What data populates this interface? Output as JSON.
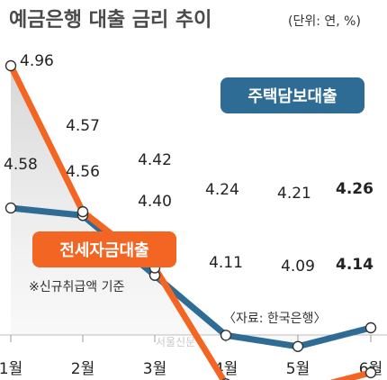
{
  "header": {
    "title": "예금은행 대출 금리 추이",
    "unit": "(단위: 연, %)"
  },
  "note": "※신규취급액 기준",
  "source": "〈자료: 한국은행〉",
  "watermark": "서울신문",
  "chart_data": {
    "type": "line",
    "categories": [
      "1월",
      "2월",
      "3월",
      "4월",
      "5월",
      "6월"
    ],
    "ylim": [
      4.0,
      5.0
    ],
    "grid": false,
    "series": [
      {
        "name": "주택담보대출",
        "color": "#2e6b95",
        "values": [
          4.58,
          4.56,
          4.4,
          4.24,
          4.21,
          4.26
        ],
        "labels": [
          "4.58",
          "4.56",
          "4.40",
          "4.24",
          "4.21",
          "4.26"
        ]
      },
      {
        "name": "전세자금대출",
        "color": "#f26522",
        "values": [
          4.96,
          4.57,
          4.42,
          4.11,
          4.09,
          4.14
        ],
        "labels": [
          "4.96",
          "4.57",
          "4.42",
          "4.11",
          "4.09",
          "4.14"
        ]
      }
    ]
  }
}
